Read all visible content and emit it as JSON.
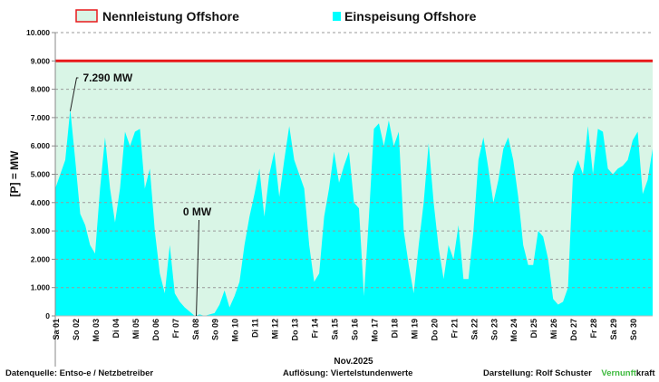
{
  "chart_data": {
    "type": "area",
    "xlabel": "Nov.2025",
    "ylabel": "[P] = MW",
    "ylim": [
      0,
      10000
    ],
    "yticks": [
      0,
      1000,
      2000,
      3000,
      4000,
      5000,
      6000,
      7000,
      8000,
      9000,
      10000
    ],
    "ytick_labels": [
      "0",
      "1.000",
      "2.000",
      "3.000",
      "4.000",
      "5.000",
      "6.000",
      "7.000",
      "8.000",
      "9.000",
      "10.000"
    ],
    "xlim": [
      0,
      30
    ],
    "xtick_labels": [
      "Sa 01",
      "So 02",
      "Mo 03",
      "Di 04",
      "Mi 05",
      "Do 06",
      "Fr 07",
      "Sa 08",
      "So 09",
      "Mo 10",
      "Di 11",
      "Mi 12",
      "Do 13",
      "Fr 14",
      "Sa 15",
      "So 16",
      "Mo 17",
      "Di 18",
      "Mi 19",
      "Do 20",
      "Fr 21",
      "Sa 22",
      "So 23",
      "Mo 24",
      "Di 25",
      "Mi 26",
      "Do 27",
      "Fr 28",
      "Sa 29",
      "So 30"
    ],
    "grid": true,
    "legend_placement": "top",
    "legend": [
      {
        "label": "Nennleistung Offshore",
        "color": "#d9f5e6",
        "border": "#e8191b"
      },
      {
        "label": "Einspeisung Offshore",
        "color": "#00ffff"
      }
    ],
    "series": [
      {
        "name": "Nennleistung Offshore",
        "value": 9000,
        "color": "#e8191b"
      },
      {
        "name": "Einspeisung Offshore",
        "color": "#00ffff",
        "x_step_days": 0.25,
        "values": [
          4500,
          5000,
          5500,
          7290,
          5500,
          3600,
          3200,
          2500,
          2200,
          4500,
          6300,
          4500,
          3300,
          4500,
          6500,
          6000,
          6500,
          6600,
          4500,
          5200,
          3000,
          1500,
          800,
          2500,
          800,
          500,
          300,
          150,
          0,
          50,
          0,
          50,
          100,
          400,
          900,
          300,
          700,
          1200,
          2500,
          3500,
          4300,
          5200,
          3500,
          5000,
          5800,
          4200,
          5500,
          6700,
          5500,
          5000,
          4500,
          2500,
          1200,
          1500,
          3500,
          4500,
          5800,
          4700,
          5300,
          5800,
          4000,
          3800,
          700,
          3500,
          6600,
          6800,
          6000,
          6900,
          6000,
          6500,
          3000,
          1800,
          800,
          2500,
          4000,
          6100,
          4000,
          2400,
          1300,
          2500,
          2000,
          3200,
          1300,
          1300,
          3000,
          5500,
          6300,
          5200,
          4000,
          4800,
          5900,
          6300,
          5500,
          4200,
          2500,
          1800,
          1800,
          3000,
          2800,
          2000,
          600,
          400,
          500,
          1000,
          5000,
          5500,
          5000,
          6700,
          5000,
          6600,
          6500,
          5200,
          5000,
          5200,
          5300,
          5500,
          6200,
          6500,
          4300,
          4800,
          5900
        ]
      }
    ],
    "annotations": [
      {
        "text": "7.290 MW",
        "x": 0.75,
        "y": 7290
      },
      {
        "text": "0 MW",
        "x": 7.08,
        "y": 0
      }
    ]
  },
  "footer": {
    "source": "Datenquelle:  Entso-e  / Netzbetreiber",
    "resolution": "Auflösung: Viertelstundenwerte",
    "author": "Darstellung:  Rolf Schuster",
    "brand_green": "Vernunft",
    "brand_black": "kraft",
    "brand_color": "#3cb93c"
  }
}
